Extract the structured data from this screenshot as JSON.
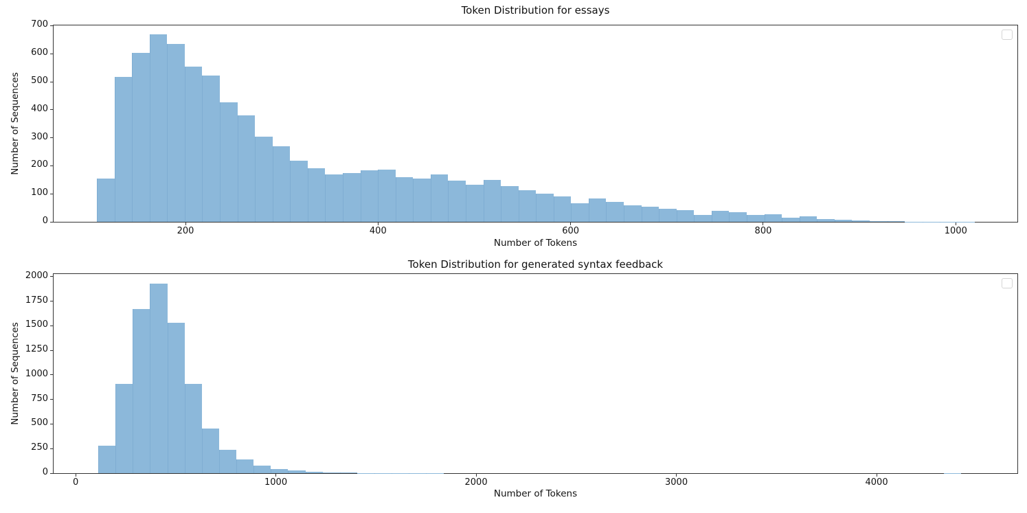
{
  "figure": {
    "background": "#ffffff"
  },
  "style": {
    "bar_color": "#8cb8da",
    "bar_seam_color": "#7fadd2",
    "spine_color": "#333333",
    "text_color": "#111111",
    "legend_border_color": "#d5d5d5"
  },
  "chart_data": [
    {
      "type": "bar",
      "subtype": "histogram",
      "title": "Token Distribution for essays",
      "xlabel": "Number of Tokens",
      "ylabel": "Number of Sequences",
      "xlim": [
        63,
        1064
      ],
      "ylim": [
        0,
        701
      ],
      "x_ticks": [
        200,
        400,
        600,
        800,
        1000
      ],
      "y_ticks": [
        0,
        100,
        200,
        300,
        400,
        500,
        600,
        700
      ],
      "grid": false,
      "legend": {
        "present": true,
        "entries": [],
        "position": "upper right"
      },
      "bin_start": 108,
      "bin_width": 18.24,
      "counts": [
        155,
        518,
        602,
        668,
        636,
        555,
        521,
        427,
        379,
        304,
        270,
        218,
        192,
        168,
        175,
        183,
        187,
        160,
        154,
        169,
        148,
        133,
        150,
        128,
        113,
        100,
        91,
        66,
        83,
        71,
        60,
        53,
        46,
        42,
        25,
        40,
        34,
        24,
        28,
        15,
        20,
        10,
        7,
        5,
        3,
        2,
        1,
        1,
        1,
        1
      ]
    },
    {
      "type": "bar",
      "subtype": "histogram",
      "title": "Token Distribution for generated syntax feedback",
      "xlabel": "Number of Tokens",
      "ylabel": "Number of Sequences",
      "xlim": [
        -110,
        4703
      ],
      "ylim": [
        0,
        2027
      ],
      "x_ticks": [
        0,
        1000,
        2000,
        3000,
        4000
      ],
      "y_ticks": [
        0,
        250,
        500,
        750,
        1000,
        1250,
        1500,
        1750,
        2000
      ],
      "grid": false,
      "legend": {
        "present": true,
        "entries": [],
        "position": "upper right"
      },
      "bin_start": 113,
      "bin_width": 86.2,
      "counts": [
        283,
        910,
        1670,
        1930,
        1530,
        910,
        455,
        240,
        140,
        75,
        45,
        28,
        16,
        8,
        5,
        3,
        2,
        1,
        1,
        1,
        0,
        0,
        0,
        0,
        0,
        0,
        0,
        0,
        0,
        0,
        0,
        0,
        0,
        0,
        0,
        0,
        0,
        0,
        0,
        0,
        0,
        0,
        0,
        0,
        0,
        0,
        0,
        0,
        0,
        1
      ]
    }
  ]
}
